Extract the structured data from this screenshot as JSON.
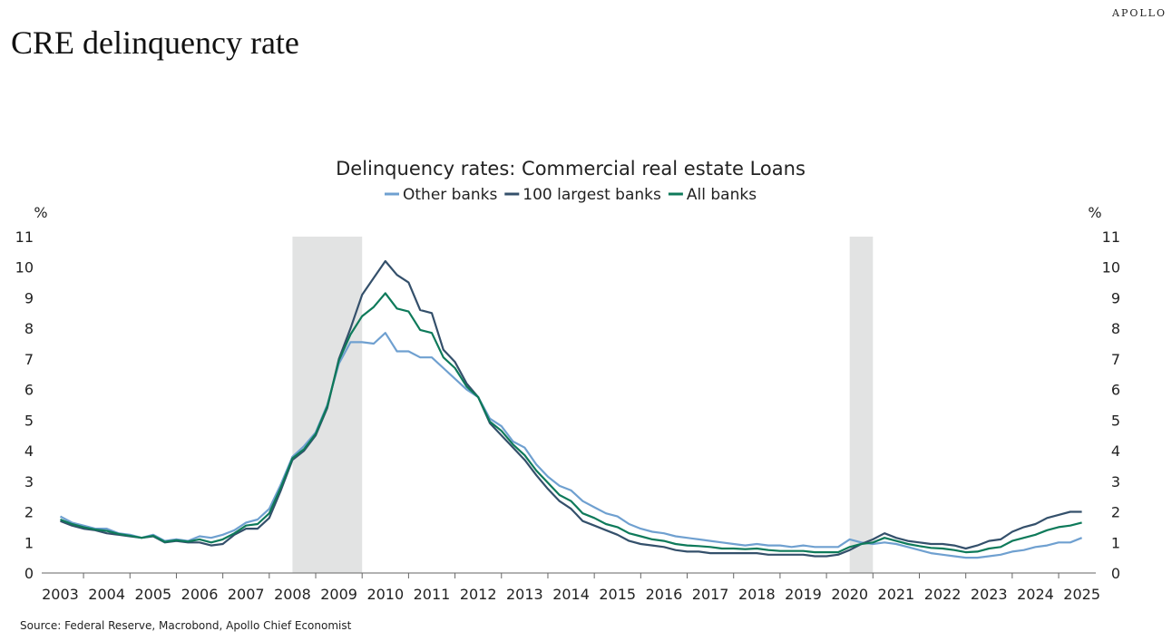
{
  "brand": "APOLLO",
  "slide_title": "CRE delinquency rate",
  "source": "Source: Federal Reserve, Macrobond, Apollo Chief Economist",
  "chart_data": {
    "type": "line",
    "title": "Delinquency rates: Commercial real estate Loans",
    "ylabel_left": "%",
    "ylabel_right": "%",
    "ylim": [
      0,
      11
    ],
    "yticks": [
      0,
      1,
      2,
      3,
      4,
      5,
      6,
      7,
      8,
      9,
      10,
      11
    ],
    "xlim": [
      2003,
      2025
    ],
    "xticks": [
      2003,
      2004,
      2005,
      2006,
      2007,
      2008,
      2009,
      2010,
      2011,
      2012,
      2013,
      2014,
      2015,
      2016,
      2017,
      2018,
      2019,
      2020,
      2021,
      2022,
      2023,
      2024,
      2025
    ],
    "legend_position": "top-center",
    "grid": false,
    "recessions": [
      [
        2008.0,
        2009.5
      ],
      [
        2020.0,
        2020.5
      ]
    ],
    "series": [
      {
        "name": "Other banks",
        "color": "#6fa0d0",
        "points": [
          [
            2003.0,
            1.85
          ],
          [
            2003.25,
            1.65
          ],
          [
            2003.5,
            1.55
          ],
          [
            2003.75,
            1.45
          ],
          [
            2004.0,
            1.45
          ],
          [
            2004.25,
            1.3
          ],
          [
            2004.5,
            1.25
          ],
          [
            2004.75,
            1.15
          ],
          [
            2005.0,
            1.25
          ],
          [
            2005.25,
            1.05
          ],
          [
            2005.5,
            1.1
          ],
          [
            2005.75,
            1.05
          ],
          [
            2006.0,
            1.2
          ],
          [
            2006.25,
            1.15
          ],
          [
            2006.5,
            1.25
          ],
          [
            2006.75,
            1.4
          ],
          [
            2007.0,
            1.65
          ],
          [
            2007.25,
            1.75
          ],
          [
            2007.5,
            2.1
          ],
          [
            2007.75,
            2.9
          ],
          [
            2008.0,
            3.8
          ],
          [
            2008.25,
            4.15
          ],
          [
            2008.5,
            4.6
          ],
          [
            2008.75,
            5.5
          ],
          [
            2009.0,
            6.85
          ],
          [
            2009.25,
            7.55
          ],
          [
            2009.5,
            7.55
          ],
          [
            2009.75,
            7.5
          ],
          [
            2010.0,
            7.85
          ],
          [
            2010.25,
            7.25
          ],
          [
            2010.5,
            7.25
          ],
          [
            2010.75,
            7.05
          ],
          [
            2011.0,
            7.05
          ],
          [
            2011.25,
            6.7
          ],
          [
            2011.5,
            6.35
          ],
          [
            2011.75,
            6.0
          ],
          [
            2012.0,
            5.75
          ],
          [
            2012.25,
            5.05
          ],
          [
            2012.5,
            4.8
          ],
          [
            2012.75,
            4.3
          ],
          [
            2013.0,
            4.1
          ],
          [
            2013.25,
            3.55
          ],
          [
            2013.5,
            3.15
          ],
          [
            2013.75,
            2.85
          ],
          [
            2014.0,
            2.7
          ],
          [
            2014.25,
            2.35
          ],
          [
            2014.5,
            2.15
          ],
          [
            2014.75,
            1.95
          ],
          [
            2015.0,
            1.85
          ],
          [
            2015.25,
            1.6
          ],
          [
            2015.5,
            1.45
          ],
          [
            2015.75,
            1.35
          ],
          [
            2016.0,
            1.3
          ],
          [
            2016.25,
            1.2
          ],
          [
            2016.5,
            1.15
          ],
          [
            2016.75,
            1.1
          ],
          [
            2017.0,
            1.05
          ],
          [
            2017.25,
            1.0
          ],
          [
            2017.5,
            0.95
          ],
          [
            2017.75,
            0.9
          ],
          [
            2018.0,
            0.95
          ],
          [
            2018.25,
            0.9
          ],
          [
            2018.5,
            0.9
          ],
          [
            2018.75,
            0.85
          ],
          [
            2019.0,
            0.9
          ],
          [
            2019.25,
            0.85
          ],
          [
            2019.5,
            0.85
          ],
          [
            2019.75,
            0.85
          ],
          [
            2020.0,
            1.1
          ],
          [
            2020.25,
            1.0
          ],
          [
            2020.5,
            0.95
          ],
          [
            2020.75,
            1.0
          ],
          [
            2021.0,
            0.95
          ],
          [
            2021.25,
            0.85
          ],
          [
            2021.5,
            0.75
          ],
          [
            2021.75,
            0.65
          ],
          [
            2022.0,
            0.6
          ],
          [
            2022.25,
            0.55
          ],
          [
            2022.5,
            0.5
          ],
          [
            2022.75,
            0.5
          ],
          [
            2023.0,
            0.55
          ],
          [
            2023.25,
            0.6
          ],
          [
            2023.5,
            0.7
          ],
          [
            2023.75,
            0.75
          ],
          [
            2024.0,
            0.85
          ],
          [
            2024.25,
            0.9
          ],
          [
            2024.5,
            1.0
          ],
          [
            2024.75,
            1.0
          ],
          [
            2025.0,
            1.15
          ]
        ]
      },
      {
        "name": "100 largest banks",
        "color": "#34506b",
        "points": [
          [
            2003.0,
            1.7
          ],
          [
            2003.25,
            1.55
          ],
          [
            2003.5,
            1.45
          ],
          [
            2003.75,
            1.4
          ],
          [
            2004.0,
            1.3
          ],
          [
            2004.25,
            1.25
          ],
          [
            2004.5,
            1.2
          ],
          [
            2004.75,
            1.15
          ],
          [
            2005.0,
            1.2
          ],
          [
            2005.25,
            1.0
          ],
          [
            2005.5,
            1.05
          ],
          [
            2005.75,
            1.0
          ],
          [
            2006.0,
            1.0
          ],
          [
            2006.25,
            0.9
          ],
          [
            2006.5,
            0.95
          ],
          [
            2006.75,
            1.25
          ],
          [
            2007.0,
            1.45
          ],
          [
            2007.25,
            1.45
          ],
          [
            2007.5,
            1.8
          ],
          [
            2007.75,
            2.7
          ],
          [
            2008.0,
            3.7
          ],
          [
            2008.25,
            4.0
          ],
          [
            2008.5,
            4.5
          ],
          [
            2008.75,
            5.4
          ],
          [
            2009.0,
            7.0
          ],
          [
            2009.25,
            8.0
          ],
          [
            2009.5,
            9.1
          ],
          [
            2009.75,
            9.65
          ],
          [
            2010.0,
            10.2
          ],
          [
            2010.25,
            9.75
          ],
          [
            2010.5,
            9.5
          ],
          [
            2010.75,
            8.6
          ],
          [
            2011.0,
            8.5
          ],
          [
            2011.25,
            7.3
          ],
          [
            2011.5,
            6.9
          ],
          [
            2011.75,
            6.2
          ],
          [
            2012.0,
            5.75
          ],
          [
            2012.25,
            4.9
          ],
          [
            2012.5,
            4.5
          ],
          [
            2012.75,
            4.1
          ],
          [
            2013.0,
            3.7
          ],
          [
            2013.25,
            3.2
          ],
          [
            2013.5,
            2.75
          ],
          [
            2013.75,
            2.35
          ],
          [
            2014.0,
            2.1
          ],
          [
            2014.25,
            1.7
          ],
          [
            2014.5,
            1.55
          ],
          [
            2014.75,
            1.4
          ],
          [
            2015.0,
            1.25
          ],
          [
            2015.25,
            1.05
          ],
          [
            2015.5,
            0.95
          ],
          [
            2015.75,
            0.9
          ],
          [
            2016.0,
            0.85
          ],
          [
            2016.25,
            0.75
          ],
          [
            2016.5,
            0.7
          ],
          [
            2016.75,
            0.7
          ],
          [
            2017.0,
            0.65
          ],
          [
            2017.25,
            0.65
          ],
          [
            2017.5,
            0.65
          ],
          [
            2017.75,
            0.65
          ],
          [
            2018.0,
            0.65
          ],
          [
            2018.25,
            0.6
          ],
          [
            2018.5,
            0.6
          ],
          [
            2018.75,
            0.6
          ],
          [
            2019.0,
            0.6
          ],
          [
            2019.25,
            0.55
          ],
          [
            2019.5,
            0.55
          ],
          [
            2019.75,
            0.6
          ],
          [
            2020.0,
            0.75
          ],
          [
            2020.25,
            0.95
          ],
          [
            2020.5,
            1.1
          ],
          [
            2020.75,
            1.3
          ],
          [
            2021.0,
            1.15
          ],
          [
            2021.25,
            1.05
          ],
          [
            2021.5,
            1.0
          ],
          [
            2021.75,
            0.95
          ],
          [
            2022.0,
            0.95
          ],
          [
            2022.25,
            0.9
          ],
          [
            2022.5,
            0.8
          ],
          [
            2022.75,
            0.9
          ],
          [
            2023.0,
            1.05
          ],
          [
            2023.25,
            1.1
          ],
          [
            2023.5,
            1.35
          ],
          [
            2023.75,
            1.5
          ],
          [
            2024.0,
            1.6
          ],
          [
            2024.25,
            1.8
          ],
          [
            2024.5,
            1.9
          ],
          [
            2024.75,
            2.0
          ],
          [
            2025.0,
            2.0
          ]
        ]
      },
      {
        "name": "All banks",
        "color": "#0e7a5a",
        "points": [
          [
            2003.0,
            1.75
          ],
          [
            2003.25,
            1.6
          ],
          [
            2003.5,
            1.5
          ],
          [
            2003.75,
            1.42
          ],
          [
            2004.0,
            1.38
          ],
          [
            2004.25,
            1.28
          ],
          [
            2004.5,
            1.22
          ],
          [
            2004.75,
            1.15
          ],
          [
            2005.0,
            1.22
          ],
          [
            2005.25,
            1.02
          ],
          [
            2005.5,
            1.07
          ],
          [
            2005.75,
            1.03
          ],
          [
            2006.0,
            1.1
          ],
          [
            2006.25,
            1.0
          ],
          [
            2006.5,
            1.1
          ],
          [
            2006.75,
            1.3
          ],
          [
            2007.0,
            1.55
          ],
          [
            2007.25,
            1.6
          ],
          [
            2007.5,
            1.95
          ],
          [
            2007.75,
            2.8
          ],
          [
            2008.0,
            3.75
          ],
          [
            2008.25,
            4.05
          ],
          [
            2008.5,
            4.55
          ],
          [
            2008.75,
            5.45
          ],
          [
            2009.0,
            6.95
          ],
          [
            2009.25,
            7.8
          ],
          [
            2009.5,
            8.4
          ],
          [
            2009.75,
            8.7
          ],
          [
            2010.0,
            9.15
          ],
          [
            2010.25,
            8.65
          ],
          [
            2010.5,
            8.55
          ],
          [
            2010.75,
            7.95
          ],
          [
            2011.0,
            7.85
          ],
          [
            2011.25,
            7.05
          ],
          [
            2011.5,
            6.7
          ],
          [
            2011.75,
            6.1
          ],
          [
            2012.0,
            5.75
          ],
          [
            2012.25,
            4.95
          ],
          [
            2012.5,
            4.65
          ],
          [
            2012.75,
            4.2
          ],
          [
            2013.0,
            3.85
          ],
          [
            2013.25,
            3.35
          ],
          [
            2013.5,
            2.95
          ],
          [
            2013.75,
            2.55
          ],
          [
            2014.0,
            2.35
          ],
          [
            2014.25,
            1.95
          ],
          [
            2014.5,
            1.8
          ],
          [
            2014.75,
            1.6
          ],
          [
            2015.0,
            1.5
          ],
          [
            2015.25,
            1.3
          ],
          [
            2015.5,
            1.2
          ],
          [
            2015.75,
            1.1
          ],
          [
            2016.0,
            1.05
          ],
          [
            2016.25,
            0.95
          ],
          [
            2016.5,
            0.9
          ],
          [
            2016.75,
            0.88
          ],
          [
            2017.0,
            0.85
          ],
          [
            2017.25,
            0.8
          ],
          [
            2017.5,
            0.8
          ],
          [
            2017.75,
            0.78
          ],
          [
            2018.0,
            0.8
          ],
          [
            2018.25,
            0.75
          ],
          [
            2018.5,
            0.72
          ],
          [
            2018.75,
            0.72
          ],
          [
            2019.0,
            0.72
          ],
          [
            2019.25,
            0.68
          ],
          [
            2019.5,
            0.68
          ],
          [
            2019.75,
            0.68
          ],
          [
            2020.0,
            0.85
          ],
          [
            2020.25,
            0.95
          ],
          [
            2020.5,
            1.0
          ],
          [
            2020.75,
            1.15
          ],
          [
            2021.0,
            1.05
          ],
          [
            2021.25,
            0.95
          ],
          [
            2021.5,
            0.88
          ],
          [
            2021.75,
            0.82
          ],
          [
            2022.0,
            0.8
          ],
          [
            2022.25,
            0.75
          ],
          [
            2022.5,
            0.68
          ],
          [
            2022.75,
            0.7
          ],
          [
            2023.0,
            0.8
          ],
          [
            2023.25,
            0.85
          ],
          [
            2023.5,
            1.05
          ],
          [
            2023.75,
            1.15
          ],
          [
            2024.0,
            1.25
          ],
          [
            2024.25,
            1.4
          ],
          [
            2024.5,
            1.5
          ],
          [
            2024.75,
            1.55
          ],
          [
            2025.0,
            1.65
          ]
        ]
      }
    ]
  }
}
